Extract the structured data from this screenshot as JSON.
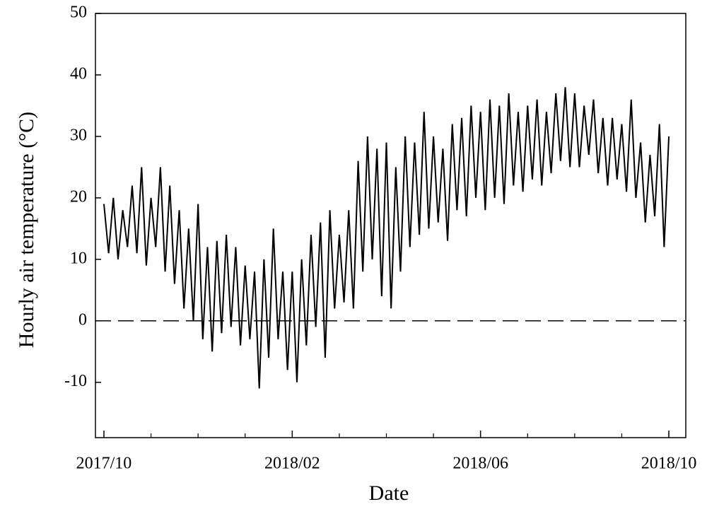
{
  "chart_data": {
    "type": "line",
    "xlabel": "Date",
    "ylabel": "Hourly air temperature (°C)",
    "x": [
      0,
      0.1,
      0.2,
      0.3,
      0.4,
      0.5,
      0.6,
      0.7,
      0.8,
      0.9,
      1,
      1.1,
      1.2,
      1.3,
      1.4,
      1.5,
      1.6,
      1.7,
      1.8,
      1.9,
      2,
      2.1,
      2.2,
      2.3,
      2.4,
      2.5,
      2.6,
      2.7,
      2.8,
      2.9,
      3,
      3.1,
      3.2,
      3.3,
      3.4,
      3.5,
      3.6,
      3.7,
      3.8,
      3.9,
      4,
      4.1,
      4.2,
      4.3,
      4.4,
      4.5,
      4.6,
      4.7,
      4.8,
      4.9,
      5,
      5.1,
      5.2,
      5.3,
      5.4,
      5.5,
      5.6,
      5.7,
      5.8,
      5.9,
      6,
      6.1,
      6.2,
      6.3,
      6.4,
      6.5,
      6.6,
      6.7,
      6.8,
      6.9,
      7,
      7.1,
      7.2,
      7.3,
      7.4,
      7.5,
      7.6,
      7.7,
      7.8,
      7.9,
      8,
      8.1,
      8.2,
      8.3,
      8.4,
      8.5,
      8.6,
      8.7,
      8.8,
      8.9,
      9,
      9.1,
      9.2,
      9.3,
      9.4,
      9.5,
      9.6,
      9.7,
      9.8,
      9.9,
      10,
      10.1,
      10.2,
      10.3,
      10.4,
      10.5,
      10.6,
      10.7,
      10.8,
      10.9,
      11,
      11.1,
      11.2,
      11.3,
      11.4,
      11.5,
      11.6,
      11.7,
      11.8,
      11.9,
      12
    ],
    "values": [
      19,
      11,
      20,
      10,
      18,
      12,
      22,
      11,
      25,
      9,
      20,
      12,
      25,
      8,
      22,
      6,
      18,
      2,
      15,
      0,
      19,
      -3,
      12,
      -5,
      13,
      -2,
      14,
      -1,
      12,
      -4,
      9,
      -3,
      8,
      -11,
      10,
      -6,
      15,
      -3,
      8,
      -8,
      8,
      -10,
      10,
      -4,
      14,
      -1,
      16,
      -6,
      18,
      2,
      14,
      3,
      18,
      2,
      26,
      8,
      30,
      10,
      28,
      4,
      29,
      2,
      25,
      8,
      30,
      12,
      29,
      14,
      34,
      15,
      30,
      16,
      28,
      13,
      32,
      18,
      33,
      17,
      35,
      20,
      34,
      18,
      36,
      20,
      35,
      19,
      37,
      22,
      34,
      21,
      35,
      23,
      36,
      22,
      34,
      24,
      37,
      26,
      38,
      25,
      37,
      25,
      35,
      27,
      36,
      24,
      33,
      22,
      33,
      23,
      32,
      21,
      36,
      20,
      29,
      16,
      27,
      17,
      32,
      12,
      30
    ],
    "color": "#000000",
    "xlim": [
      -0.18,
      12.36
    ],
    "xticks": [
      {
        "value": 0,
        "label": "2017/10"
      },
      {
        "value": 4,
        "label": "2018/02"
      },
      {
        "value": 8,
        "label": "2018/06"
      },
      {
        "value": 12,
        "label": "2018/10"
      }
    ],
    "xminorticks": [
      1,
      2,
      3,
      5,
      6,
      7,
      9,
      10,
      11
    ],
    "ylim": [
      -19,
      50
    ],
    "yticks": [
      -10,
      0,
      10,
      20,
      30,
      40,
      50
    ],
    "hline": 0
  }
}
